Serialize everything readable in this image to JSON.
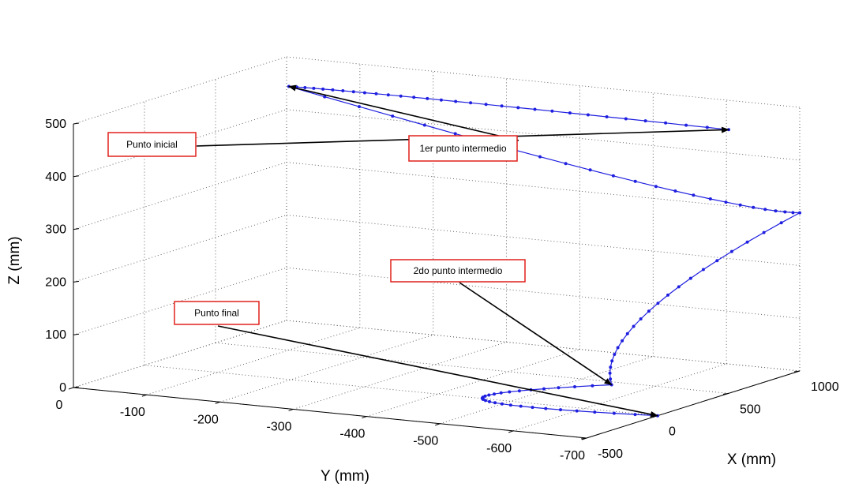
{
  "chart_data": {
    "type": "line",
    "projection": "3d",
    "grid": true,
    "xlabel": "X (mm)",
    "ylabel": "Y (mm)",
    "zlabel": "Z (mm)",
    "xlim": [
      -500,
      1000
    ],
    "ylim": [
      -700,
      0
    ],
    "zlim": [
      0,
      500
    ],
    "xticks": [
      "-500",
      "0",
      "500",
      "1000"
    ],
    "yticks": [
      "0",
      "-100",
      "-200",
      "-300",
      "-400",
      "-500",
      "-600",
      "-700"
    ],
    "zticks": [
      "0",
      "100",
      "200",
      "300",
      "400",
      "500"
    ],
    "series": [
      {
        "color": "#1f1fe0",
        "marker": "point",
        "points": [
          {
            "x": 500,
            "y": -700,
            "z": 500
          },
          {
            "x": 500,
            "y": -100,
            "z": 500
          },
          {
            "x": 1000,
            "y": -700,
            "z": 300
          },
          {
            "x": 450,
            "y": -550,
            "z": 0
          },
          {
            "x": 0,
            "y": -700,
            "z": 0
          }
        ]
      }
    ],
    "annotations": [
      {
        "text": "Punto inicial"
      },
      {
        "text": "1er punto intermedio"
      },
      {
        "text": "2do punto intermedio"
      },
      {
        "text": "Punto final"
      }
    ]
  }
}
